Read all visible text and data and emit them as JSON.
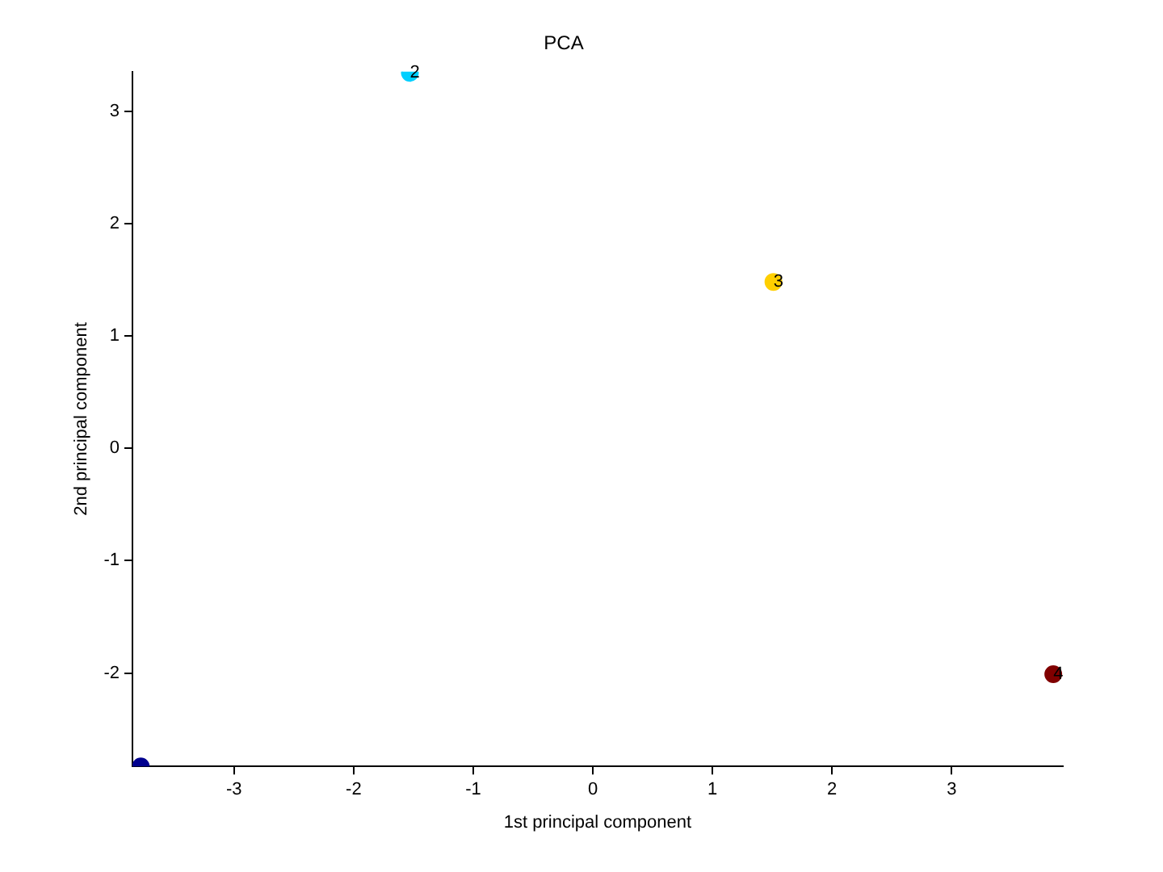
{
  "chart_data": {
    "type": "scatter",
    "title": "PCA",
    "xlabel": "1st principal component",
    "ylabel": "2nd principal component",
    "x": [
      -3.78,
      -1.53,
      1.51,
      3.85
    ],
    "series": [
      {
        "values": [
          -2.83,
          3.34,
          1.48,
          -2.01
        ],
        "colors": [
          "#00008f",
          "#00cfff",
          "#ffcf00",
          "#800000"
        ]
      }
    ],
    "xlim": [
      -3.85,
      3.93
    ],
    "ylim": [
      -2.83,
      3.35
    ],
    "xticks": [
      -3,
      -2,
      -1,
      0,
      1,
      2,
      3
    ],
    "yticks": [
      -2,
      -1,
      0,
      1,
      2,
      3
    ],
    "grid": false,
    "legend": false,
    "marker": "circle",
    "annotations": [
      {
        "text": "2",
        "x": -1.53,
        "y": 3.34
      },
      {
        "text": "3",
        "x": 1.51,
        "y": 1.48
      },
      {
        "text": "4",
        "x": 3.85,
        "y": -2.01
      }
    ]
  }
}
